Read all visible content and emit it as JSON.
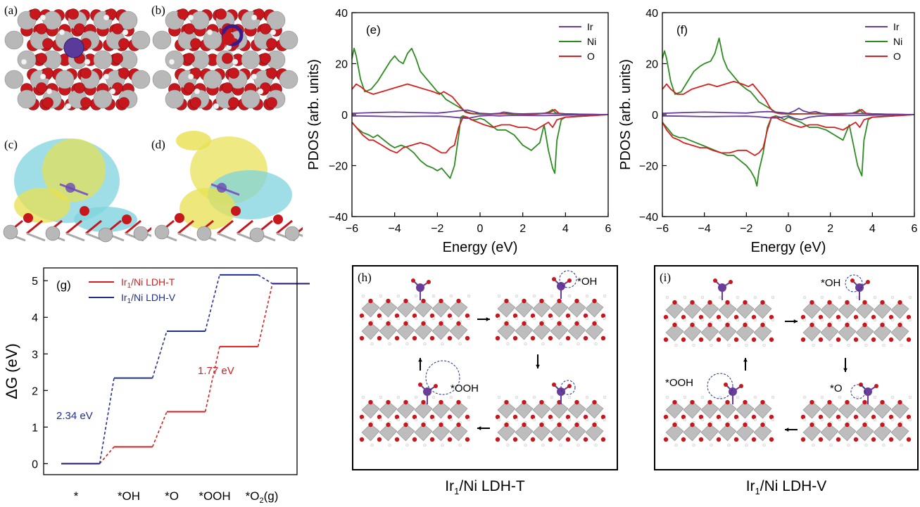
{
  "figure": {
    "panels": {
      "a": "(a)",
      "b": "(b)",
      "c": "(c)",
      "d": "(d)",
      "e": "(e)",
      "f": "(f)",
      "g": "(g)",
      "h": "(h)",
      "i": "(i)"
    },
    "colors": {
      "ir": "#6a3d9a",
      "ni": "#2e8b22",
      "o": "#d42020",
      "t_series": "#d42020",
      "v_series": "#1f2f8f",
      "oxygen_atom": "#c8161d",
      "metal_atom": "#b8b8b8",
      "iso_yellow": "#e8e050",
      "iso_cyan": "#7fd3de"
    },
    "h_caption": {
      "main": "Ir",
      "sub": "1",
      "rest": "/Ni LDH-T"
    },
    "i_caption": {
      "main": "Ir",
      "sub": "1",
      "rest": "/Ni LDH-V"
    },
    "h_labels": {
      "oh": "*OH",
      "ooh": "*OOH"
    },
    "i_labels": {
      "oh": "*OH",
      "ooh": "*OOH",
      "o": "*O"
    }
  },
  "chart_data": [
    {
      "id": "e",
      "type": "line",
      "xlabel": "Energy (eV)",
      "ylabel": "PDOS (arb. units)",
      "xlim": [
        -6,
        6
      ],
      "ylim": [
        -40,
        40
      ],
      "xticks": [
        -6,
        -4,
        -2,
        0,
        2,
        4,
        6
      ],
      "yticks": [
        -40,
        -20,
        0,
        20,
        40
      ],
      "legend": {
        "position": "top-right",
        "entries": [
          "Ir",
          "Ni",
          "O"
        ]
      },
      "series": [
        {
          "name": "Ni",
          "branch": "up",
          "x": [
            -6,
            -5.9,
            -5.8,
            -5.6,
            -5.4,
            -5.1,
            -4.8,
            -4.5,
            -4.2,
            -4,
            -3.8,
            -3.6,
            -3.4,
            -3.2,
            -3,
            -2.8,
            -2.5,
            -2.2,
            -2,
            -1.8,
            -1.6,
            -1.4,
            -1.2,
            -1,
            -0.8,
            -0.6,
            -0.4,
            -0.2,
            0,
            0.2,
            0.4,
            0.6,
            0.8,
            1,
            1.2,
            1.5,
            1.8,
            2.2,
            2.6,
            3,
            3.2,
            3.4,
            3.5,
            3.6,
            4,
            5,
            6
          ],
          "y": [
            22,
            26,
            23,
            14,
            9,
            10,
            13,
            17,
            21,
            23,
            21,
            20,
            24,
            26,
            22,
            17,
            14,
            11,
            9,
            8,
            6,
            5,
            4,
            3,
            2,
            1,
            0.5,
            0.3,
            0.2,
            0.2,
            0.2,
            0.3,
            0.3,
            0.4,
            0.3,
            0.2,
            0.2,
            0.1,
            0.2,
            0.5,
            1,
            2,
            1,
            0.5,
            0.2,
            0.1,
            0
          ]
        },
        {
          "name": "Ni",
          "branch": "down",
          "x": [
            -6,
            -5.8,
            -5.5,
            -5.2,
            -5,
            -4.8,
            -4.5,
            -4.2,
            -4,
            -3.7,
            -3.4,
            -3.1,
            -2.8,
            -2.5,
            -2.2,
            -2,
            -1.8,
            -1.6,
            -1.4,
            -1.2,
            -1,
            -0.9,
            -0.8,
            -0.6,
            -0.4,
            -0.2,
            0,
            0.2,
            0.5,
            0.8,
            1.2,
            1.6,
            2,
            2.4,
            2.8,
            3,
            3.2,
            3.4,
            3.5,
            3.6,
            3.8,
            4,
            5,
            6
          ],
          "y": [
            -3,
            -5,
            -7,
            -8,
            -9,
            -8,
            -10,
            -12,
            -13,
            -12,
            -13,
            -15,
            -18,
            -20,
            -21,
            -22,
            -21,
            -23,
            -25,
            -20,
            -8,
            -1,
            -0.5,
            -1,
            -2,
            -2,
            -1.5,
            -2,
            -4,
            -6,
            -6,
            -8,
            -12,
            -14,
            -11,
            -4,
            -14,
            -21,
            -23,
            -10,
            -2,
            -1,
            -0.5,
            0
          ]
        },
        {
          "name": "O",
          "branch": "up",
          "x": [
            -6,
            -5.8,
            -5.6,
            -5.3,
            -5,
            -4.6,
            -4.2,
            -3.8,
            -3.4,
            -3,
            -2.6,
            -2.2,
            -1.9,
            -1.7,
            -1.5,
            -1.3,
            -1.1,
            -0.9,
            -0.7,
            -0.5,
            -0.3,
            -0.1,
            0.2,
            0.5,
            0.8,
            1.1,
            1.4,
            1.8,
            2.4,
            3,
            3.3,
            3.5,
            3.7,
            4,
            5,
            6
          ],
          "y": [
            10,
            12,
            11,
            9,
            8,
            9,
            10,
            11,
            12,
            11,
            10,
            9,
            8,
            9,
            8,
            7,
            5,
            3,
            1,
            0.5,
            0.3,
            0.5,
            0.3,
            0.3,
            0.3,
            0.4,
            0.5,
            0.3,
            0.2,
            0.5,
            1,
            2,
            0.5,
            0.3,
            0.1,
            0
          ]
        },
        {
          "name": "O",
          "branch": "down",
          "x": [
            -6,
            -5.8,
            -5.5,
            -5.2,
            -5,
            -4.6,
            -4.2,
            -3.9,
            -3.6,
            -3.2,
            -2.8,
            -2.4,
            -2,
            -1.8,
            -1.6,
            -1.4,
            -1.2,
            -1,
            -0.8,
            -0.6,
            -0.4,
            -0.1,
            0.2,
            0.6,
            1,
            1.4,
            1.8,
            2.2,
            2.6,
            3,
            3.2,
            3.4,
            3.6,
            4,
            5,
            6
          ],
          "y": [
            -3,
            -5,
            -8,
            -10,
            -10,
            -12,
            -14,
            -15,
            -13,
            -12,
            -11,
            -12,
            -14,
            -15,
            -15,
            -13,
            -12,
            -5,
            -1,
            -1,
            -2,
            -3,
            -4,
            -5,
            -4,
            -4,
            -5,
            -5,
            -6,
            -4,
            -3,
            -5,
            -2,
            -1,
            -0.5,
            0
          ]
        },
        {
          "name": "Ir",
          "branch": "up",
          "x": [
            -6,
            -5,
            -4,
            -3,
            -2,
            -1.5,
            -1,
            -0.6,
            -0.3,
            0,
            0.5,
            0.9,
            1.1,
            1.3,
            1.6,
            2,
            3,
            4,
            5,
            6
          ],
          "y": [
            0.5,
            0.8,
            1,
            0.8,
            0.6,
            1,
            1.5,
            1.8,
            1.2,
            0.5,
            0.3,
            0.5,
            1,
            0.8,
            0.4,
            0.3,
            0.5,
            0.3,
            0.1,
            0
          ]
        },
        {
          "name": "Ir",
          "branch": "down",
          "x": [
            -6,
            -5,
            -4,
            -3,
            -2,
            -1.5,
            -1,
            -0.6,
            -0.3,
            0,
            0.5,
            0.9,
            1.2,
            1.5,
            2,
            3,
            4,
            5,
            6
          ],
          "y": [
            -0.5,
            -0.6,
            -0.8,
            -0.7,
            -0.6,
            -0.8,
            -1.2,
            -1.5,
            -1,
            -0.5,
            -0.3,
            -0.5,
            -0.4,
            -0.3,
            -0.3,
            -0.4,
            -0.2,
            -0.1,
            0
          ]
        }
      ]
    },
    {
      "id": "f",
      "type": "line",
      "xlabel": "Energy (eV)",
      "ylabel": "PDOS (arb. units)",
      "xlim": [
        -6,
        6
      ],
      "ylim": [
        -40,
        40
      ],
      "xticks": [
        -6,
        -4,
        -2,
        0,
        2,
        4,
        6
      ],
      "yticks": [
        -40,
        -20,
        0,
        20,
        40
      ],
      "legend": {
        "position": "top-right",
        "entries": [
          "Ir",
          "Ni",
          "O"
        ]
      },
      "series": [
        {
          "name": "Ni",
          "branch": "up",
          "x": [
            -6,
            -5.9,
            -5.8,
            -5.6,
            -5.4,
            -5.1,
            -4.8,
            -4.5,
            -4.2,
            -4,
            -3.7,
            -3.5,
            -3.3,
            -3.1,
            -2.9,
            -2.6,
            -2.3,
            -2,
            -1.8,
            -1.6,
            -1.4,
            -1.2,
            -1,
            -0.8,
            -0.6,
            -0.4,
            -0.2,
            0,
            0.3,
            0.6,
            1,
            1.4,
            1.8,
            2.2,
            2.6,
            3,
            3.2,
            3.4,
            3.5,
            3.6,
            4,
            5,
            6
          ],
          "y": [
            22,
            25,
            22,
            13,
            8,
            9,
            13,
            17,
            19,
            20,
            21,
            24,
            30,
            22,
            18,
            15,
            12,
            10,
            9,
            7,
            5,
            4,
            3,
            2,
            1,
            0.5,
            0.3,
            0.2,
            0.2,
            0.3,
            0.3,
            0.3,
            0.2,
            0.1,
            0.2,
            0.5,
            1,
            2,
            1,
            0.5,
            0.2,
            0.1,
            0
          ]
        },
        {
          "name": "Ni",
          "branch": "down",
          "x": [
            -6,
            -5.8,
            -5.5,
            -5.2,
            -5,
            -4.7,
            -4.4,
            -4.1,
            -3.8,
            -3.5,
            -3.2,
            -2.9,
            -2.6,
            -2.3,
            -2,
            -1.8,
            -1.6,
            -1.5,
            -1.4,
            -1.2,
            -1,
            -0.8,
            -0.6,
            -0.4,
            -0.2,
            0,
            0.3,
            0.6,
            1,
            1.4,
            1.8,
            2.2,
            2.6,
            2.9,
            3.1,
            3.3,
            3.5,
            3.6,
            3.8,
            4,
            5,
            6
          ],
          "y": [
            -3,
            -5,
            -8,
            -9,
            -9,
            -10,
            -11,
            -12,
            -13,
            -14,
            -15,
            -16,
            -16,
            -18,
            -20,
            -22,
            -25,
            -28,
            -22,
            -15,
            -5,
            -1,
            -0.5,
            -1,
            -2,
            -1,
            -2,
            -3,
            -5,
            -5,
            -6,
            -8,
            -10,
            -4,
            -12,
            -20,
            -24,
            -10,
            -2,
            -1,
            -0.5,
            0
          ]
        },
        {
          "name": "O",
          "branch": "up",
          "x": [
            -6,
            -5.8,
            -5.6,
            -5.3,
            -5,
            -4.6,
            -4.2,
            -3.8,
            -3.4,
            -3,
            -2.6,
            -2.2,
            -1.9,
            -1.7,
            -1.5,
            -1.3,
            -1.1,
            -0.9,
            -0.7,
            -0.5,
            -0.3,
            -0.1,
            0.2,
            0.5,
            0.8,
            1.1,
            1.4,
            1.8,
            2.4,
            3,
            3.3,
            3.5,
            3.7,
            4,
            5,
            6
          ],
          "y": [
            10,
            12,
            10,
            8,
            8,
            10,
            11,
            12,
            11,
            12,
            13,
            12,
            11,
            12,
            10,
            8,
            6,
            3,
            1,
            0.5,
            0.3,
            0.5,
            0.3,
            0.3,
            0.3,
            0.4,
            0.5,
            0.3,
            0.2,
            0.5,
            1,
            2,
            0.5,
            0.3,
            0.1,
            0
          ]
        },
        {
          "name": "O",
          "branch": "down",
          "x": [
            -6,
            -5.8,
            -5.5,
            -5.2,
            -5,
            -4.6,
            -4.2,
            -3.9,
            -3.6,
            -3.2,
            -2.8,
            -2.4,
            -2,
            -1.8,
            -1.6,
            -1.4,
            -1.2,
            -1,
            -0.8,
            -0.6,
            -0.4,
            -0.1,
            0.2,
            0.6,
            1,
            1.4,
            1.8,
            2.2,
            2.6,
            3,
            3.2,
            3.4,
            3.6,
            4,
            5,
            6
          ],
          "y": [
            -3,
            -6,
            -9,
            -10,
            -11,
            -12,
            -13,
            -13,
            -14,
            -15,
            -15,
            -14,
            -14,
            -15,
            -16,
            -15,
            -13,
            -6,
            -1,
            -1,
            -2,
            -3,
            -4,
            -5,
            -4,
            -4,
            -5,
            -5,
            -6,
            -4,
            -3,
            -5,
            -2,
            -1,
            -0.5,
            0
          ]
        },
        {
          "name": "Ir",
          "branch": "up",
          "x": [
            -6,
            -5,
            -4,
            -3,
            -2,
            -1.5,
            -1,
            -0.6,
            -0.3,
            0,
            0.3,
            0.5,
            0.7,
            1,
            1.3,
            1.6,
            2,
            3,
            4,
            5,
            6
          ],
          "y": [
            0.5,
            0.8,
            1,
            0.8,
            0.6,
            1,
            1.2,
            1,
            0.8,
            0.5,
            1.5,
            2.5,
            1.5,
            0.8,
            1.2,
            0.5,
            0.3,
            0.5,
            0.3,
            0.1,
            0
          ]
        },
        {
          "name": "Ir",
          "branch": "down",
          "x": [
            -6,
            -5,
            -4,
            -3,
            -2,
            -1.5,
            -1,
            -0.6,
            -0.3,
            0,
            0.3,
            0.6,
            1,
            1.4,
            2,
            3,
            4,
            5,
            6
          ],
          "y": [
            -0.5,
            -0.6,
            -0.8,
            -0.7,
            -0.6,
            -0.8,
            -1.2,
            -1.3,
            -1,
            -0.5,
            -1.5,
            -2,
            -1,
            -0.6,
            -0.3,
            -0.4,
            -0.2,
            -0.1,
            0
          ]
        }
      ]
    },
    {
      "id": "g",
      "type": "line",
      "ylabel": "ΔG (eV)",
      "ylim": [
        -0.3,
        5.35
      ],
      "yticks": [
        0,
        1,
        2,
        3,
        4,
        5
      ],
      "categories": [
        "*",
        "*OH",
        "*O",
        "*OOH",
        "*O2(g)"
      ],
      "category_display": [
        {
          "main": "*",
          "sub": "",
          "rest": ""
        },
        {
          "main": "*OH",
          "sub": "",
          "rest": ""
        },
        {
          "main": "*O",
          "sub": "",
          "rest": ""
        },
        {
          "main": "*OOH",
          "sub": "",
          "rest": ""
        },
        {
          "main": "*O",
          "sub": "2",
          "rest": "(g)"
        }
      ],
      "legend": {
        "position": "top-left",
        "entries": [
          {
            "main": "Ir",
            "sub": "1",
            "rest": "/Ni LDH-T"
          },
          {
            "main": "Ir",
            "sub": "1",
            "rest": "/Ni LDH-V"
          }
        ]
      },
      "series": [
        {
          "name": "Ir1/Ni LDH-T",
          "values": [
            0,
            0.46,
            1.42,
            3.2,
            4.92
          ]
        },
        {
          "name": "Ir1/Ni LDH-V",
          "values": [
            0,
            2.34,
            3.62,
            5.16,
            4.92
          ]
        }
      ],
      "annotations": [
        "2.34 eV",
        "1.77 eV"
      ]
    }
  ]
}
